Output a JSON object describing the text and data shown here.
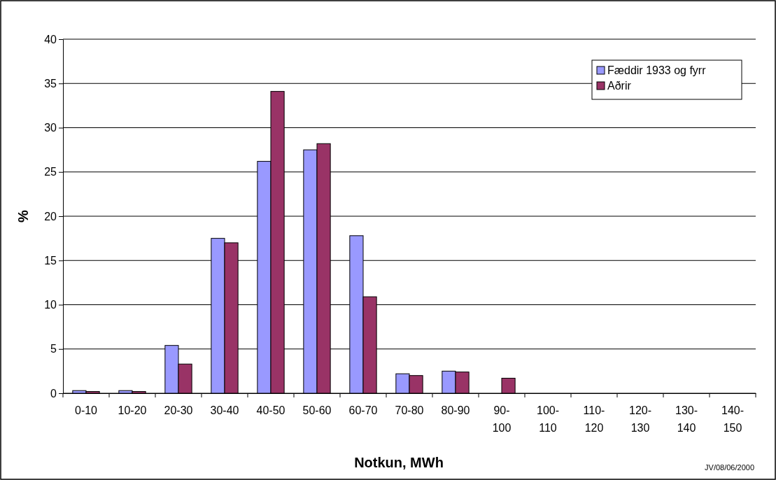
{
  "chart_data": {
    "type": "bar",
    "xlabel": "Notkun, MWh",
    "ylabel": "%",
    "categories": [
      "0-10",
      "10-20",
      "20-30",
      "30-40",
      "40-50",
      "50-60",
      "60-70",
      "70-80",
      "80-90",
      "90-100",
      "100-110",
      "110-120",
      "120-130",
      "130-140",
      "140-150"
    ],
    "series": [
      {
        "name": "Fæddir 1933 og fyrr",
        "color": "#9999ff",
        "values": [
          0.3,
          0.3,
          5.4,
          17.5,
          26.2,
          27.5,
          17.8,
          2.2,
          2.5,
          0,
          0,
          0,
          0,
          0,
          0
        ]
      },
      {
        "name": "Aðrir",
        "color": "#993366",
        "values": [
          0.2,
          0.2,
          3.3,
          17.0,
          34.1,
          28.2,
          10.9,
          2.0,
          2.4,
          1.7,
          0,
          0,
          0,
          0,
          0
        ]
      }
    ],
    "ylim": [
      0,
      40
    ],
    "yticks": [
      0,
      5,
      10,
      15,
      20,
      25,
      30,
      35,
      40
    ],
    "grid": "y",
    "legend": "top right",
    "annotations": [
      "JV/08/06/2000"
    ]
  }
}
